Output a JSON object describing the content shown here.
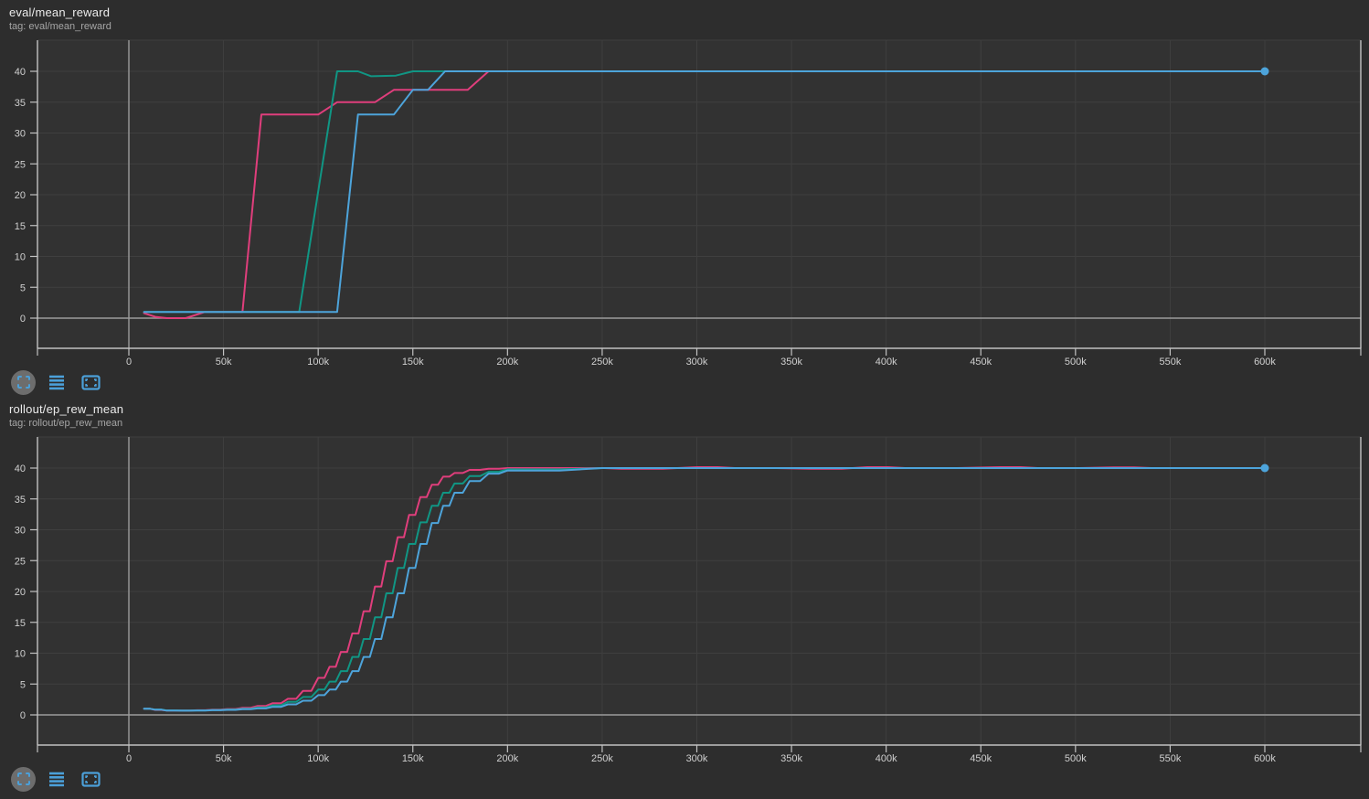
{
  "theme": {
    "page_bg": "#2d2d2d",
    "plot_bg": "#323232",
    "grid_color": "#3f3f3f",
    "axis_color": "#c2c2c2",
    "zero_line_color": "#9b9b9b",
    "tick_label_color": "#d0d0d0",
    "title_color": "#ececec",
    "tag_color": "#a6a6a6",
    "accent_blue": "#4ba0d9",
    "toolbar_circle_bg": "#6d6d6d"
  },
  "toolbar": {
    "buttons": [
      {
        "icon": "fit-domain-icon"
      },
      {
        "icon": "data-table-icon"
      },
      {
        "icon": "expand-card-icon"
      }
    ]
  },
  "charts": [
    {
      "title": "eval/mean_reward",
      "tag": "tag: eval/mean_reward",
      "chart_data": {
        "type": "line",
        "title": "eval/mean_reward",
        "xlabel": "",
        "ylabel": "",
        "xlim": [
          0,
          600000
        ],
        "ylim": [
          -5,
          45
        ],
        "grid": true,
        "legend_position": "none",
        "x_tick_values": [
          0,
          50000,
          100000,
          150000,
          200000,
          250000,
          300000,
          350000,
          400000,
          450000,
          500000,
          550000,
          600000
        ],
        "x_tick_labels": [
          "0",
          "50k",
          "100k",
          "150k",
          "200k",
          "250k",
          "300k",
          "350k",
          "400k",
          "450k",
          "500k",
          "550k",
          "600k"
        ],
        "y_tick_values": [
          0,
          5,
          10,
          15,
          20,
          25,
          30,
          35,
          40
        ],
        "y_tick_labels": [
          "0",
          "5",
          "10",
          "15",
          "20",
          "25",
          "30",
          "35",
          "40"
        ],
        "series": [
          {
            "name": "run-pink",
            "color": "#e03e7c",
            "stepped": false,
            "end_marker": false,
            "points": [
              [
                8000,
                0.8
              ],
              [
                14000,
                0.2
              ],
              [
                20000,
                0
              ],
              [
                30000,
                0
              ],
              [
                40000,
                1
              ],
              [
                60000,
                1
              ],
              [
                70000,
                33
              ],
              [
                100000,
                33
              ],
              [
                110000,
                35
              ],
              [
                130000,
                35
              ],
              [
                140000,
                37
              ],
              [
                179000,
                37
              ],
              [
                190000,
                40
              ]
            ]
          },
          {
            "name": "run-teal",
            "color": "#109684",
            "stepped": false,
            "end_marker": false,
            "points": [
              [
                8000,
                1
              ],
              [
                90000,
                1
              ],
              [
                110000,
                40
              ],
              [
                121000,
                40
              ],
              [
                128000,
                39.2
              ],
              [
                141000,
                39.3
              ],
              [
                150000,
                40
              ],
              [
                200000,
                40
              ]
            ]
          },
          {
            "name": "run-blue",
            "color": "#4da4db",
            "stepped": false,
            "end_marker": true,
            "points": [
              [
                8000,
                1
              ],
              [
                110000,
                1
              ],
              [
                121000,
                33
              ],
              [
                140000,
                33
              ],
              [
                150000,
                37
              ],
              [
                158000,
                37
              ],
              [
                167000,
                40
              ],
              [
                600000,
                40
              ]
            ]
          }
        ]
      }
    },
    {
      "title": "rollout/ep_rew_mean",
      "tag": "tag: rollout/ep_rew_mean",
      "chart_data": {
        "type": "line",
        "title": "rollout/ep_rew_mean",
        "xlabel": "",
        "ylabel": "",
        "xlim": [
          0,
          600000
        ],
        "ylim": [
          -5,
          45
        ],
        "grid": true,
        "legend_position": "none",
        "x_tick_values": [
          0,
          50000,
          100000,
          150000,
          200000,
          250000,
          300000,
          350000,
          400000,
          450000,
          500000,
          550000,
          600000
        ],
        "x_tick_labels": [
          "0",
          "50k",
          "100k",
          "150k",
          "200k",
          "250k",
          "300k",
          "350k",
          "400k",
          "450k",
          "500k",
          "550k",
          "600k"
        ],
        "y_tick_values": [
          0,
          5,
          10,
          15,
          20,
          25,
          30,
          35,
          40
        ],
        "y_tick_labels": [
          "0",
          "5",
          "10",
          "15",
          "20",
          "25",
          "30",
          "35",
          "40"
        ],
        "series": [
          {
            "name": "run-pink",
            "color": "#e03e7c",
            "stepped": true,
            "end_marker": false,
            "points": [
              [
                8000,
                1.0
              ],
              [
                14000,
                0.8
              ],
              [
                20000,
                0.7
              ],
              [
                28000,
                0.7
              ],
              [
                36000,
                0.75
              ],
              [
                44000,
                0.85
              ],
              [
                52000,
                0.95
              ],
              [
                60000,
                1.15
              ],
              [
                68000,
                1.45
              ],
              [
                76000,
                1.9
              ],
              [
                84000,
                2.6
              ],
              [
                92000,
                3.9
              ],
              [
                100000,
                6.0
              ],
              [
                106000,
                7.8
              ],
              [
                112000,
                10.2
              ],
              [
                118000,
                13.2
              ],
              [
                124000,
                16.8
              ],
              [
                130000,
                20.8
              ],
              [
                136000,
                24.9
              ],
              [
                142000,
                28.8
              ],
              [
                148000,
                32.4
              ],
              [
                154000,
                35.3
              ],
              [
                160000,
                37.3
              ],
              [
                166000,
                38.6
              ],
              [
                172000,
                39.2
              ],
              [
                180000,
                39.7
              ],
              [
                190000,
                39.9
              ],
              [
                200000,
                40
              ],
              [
                240000,
                40
              ],
              [
                260000,
                39.9
              ],
              [
                300000,
                40.15
              ],
              [
                320000,
                40
              ],
              [
                360000,
                39.9
              ],
              [
                390000,
                40.15
              ],
              [
                410000,
                40
              ],
              [
                460000,
                40.15
              ],
              [
                480000,
                40
              ],
              [
                520000,
                40.1
              ],
              [
                540000,
                40
              ],
              [
                600000,
                40
              ]
            ]
          },
          {
            "name": "run-teal",
            "color": "#109684",
            "stepped": true,
            "end_marker": false,
            "points": [
              [
                8000,
                1.0
              ],
              [
                14000,
                0.85
              ],
              [
                20000,
                0.72
              ],
              [
                28000,
                0.7
              ],
              [
                36000,
                0.72
              ],
              [
                44000,
                0.8
              ],
              [
                52000,
                0.88
              ],
              [
                60000,
                1.0
              ],
              [
                68000,
                1.2
              ],
              [
                76000,
                1.55
              ],
              [
                84000,
                2.1
              ],
              [
                92000,
                2.9
              ],
              [
                100000,
                4.1
              ],
              [
                106000,
                5.4
              ],
              [
                112000,
                7.1
              ],
              [
                118000,
                9.4
              ],
              [
                124000,
                12.3
              ],
              [
                130000,
                15.8
              ],
              [
                136000,
                19.7
              ],
              [
                142000,
                23.8
              ],
              [
                148000,
                27.7
              ],
              [
                154000,
                31.2
              ],
              [
                160000,
                33.9
              ],
              [
                166000,
                36.0
              ],
              [
                172000,
                37.5
              ],
              [
                180000,
                38.7
              ],
              [
                190000,
                39.4
              ],
              [
                200000,
                39.8
              ],
              [
                250000,
                40
              ],
              [
                600000,
                40
              ]
            ]
          },
          {
            "name": "run-blue",
            "color": "#4da4db",
            "stepped": true,
            "end_marker": true,
            "points": [
              [
                8000,
                1.0
              ],
              [
                14000,
                0.85
              ],
              [
                20000,
                0.7
              ],
              [
                28000,
                0.68
              ],
              [
                36000,
                0.7
              ],
              [
                44000,
                0.75
              ],
              [
                52000,
                0.82
              ],
              [
                60000,
                0.92
              ],
              [
                68000,
                1.05
              ],
              [
                76000,
                1.3
              ],
              [
                84000,
                1.7
              ],
              [
                92000,
                2.3
              ],
              [
                100000,
                3.2
              ],
              [
                106000,
                4.1
              ],
              [
                112000,
                5.4
              ],
              [
                118000,
                7.1
              ],
              [
                124000,
                9.4
              ],
              [
                130000,
                12.3
              ],
              [
                136000,
                15.8
              ],
              [
                142000,
                19.7
              ],
              [
                148000,
                23.8
              ],
              [
                154000,
                27.7
              ],
              [
                160000,
                31.1
              ],
              [
                166000,
                33.9
              ],
              [
                172000,
                36.0
              ],
              [
                180000,
                37.9
              ],
              [
                190000,
                39.1
              ],
              [
                200000,
                39.6
              ],
              [
                250000,
                40
              ],
              [
                600000,
                40
              ]
            ]
          }
        ]
      }
    }
  ]
}
